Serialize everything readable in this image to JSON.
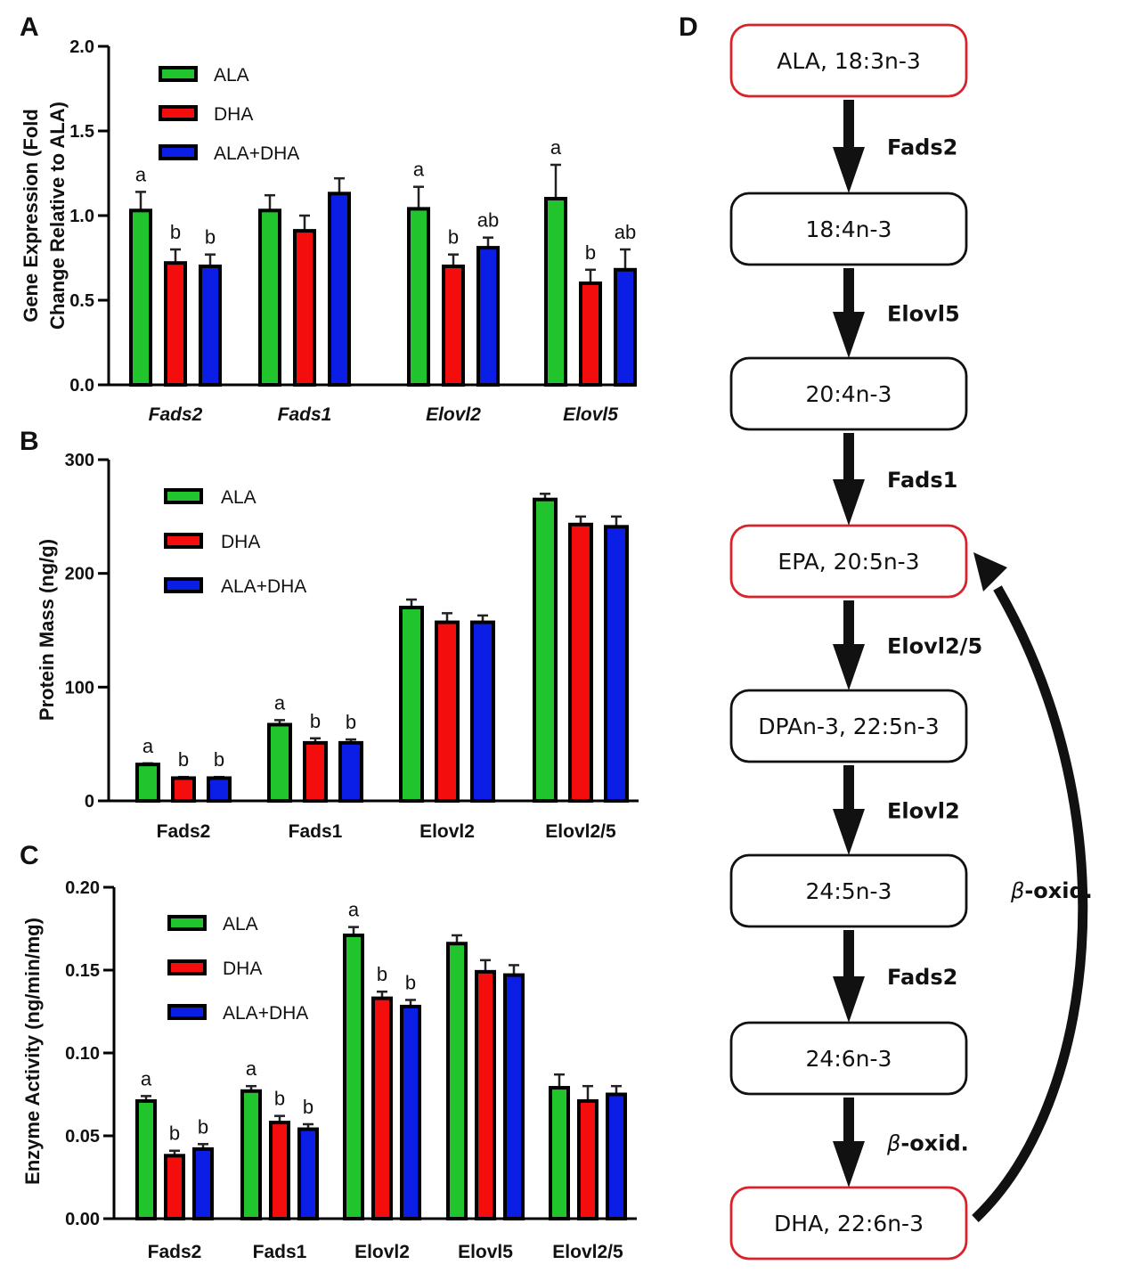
{
  "colors": {
    "ALA": "#22c42e",
    "DHA": "#f40d0d",
    "ALA+DHA": "#0a1ee6",
    "highlight_border": "#d9232a",
    "normal_border": "#111111"
  },
  "chart_data": [
    {
      "panel": "A",
      "type": "bar",
      "title": "",
      "xlabel": "",
      "ylabel": "Gene Expression (Fold Change Relative to ALA)",
      "ylabel_lines": [
        "Gene Expression (Fold",
        "Change Relative to ALA)"
      ],
      "ylim": [
        0,
        2.0
      ],
      "yticks": [
        0.0,
        0.5,
        1.0,
        1.5,
        2.0
      ],
      "ytick_labels": [
        "0.0",
        "0.5",
        "1.0",
        "1.5",
        "2.0"
      ],
      "categories": [
        "Fads2",
        "Fads1",
        "Elovl2",
        "Elovl5"
      ],
      "categories_italic": true,
      "legend": [
        "ALA",
        "DHA",
        "ALA+DHA"
      ],
      "legend_position": "top-left",
      "grid": false,
      "series": [
        {
          "name": "ALA",
          "values": [
            1.03,
            1.03,
            1.04,
            1.1
          ],
          "error_upper": [
            1.14,
            1.12,
            1.17,
            1.3
          ]
        },
        {
          "name": "DHA",
          "values": [
            0.72,
            0.91,
            0.7,
            0.6
          ],
          "error_upper": [
            0.8,
            1.0,
            0.77,
            0.68
          ]
        },
        {
          "name": "ALA+DHA",
          "values": [
            0.7,
            1.13,
            0.81,
            0.68
          ],
          "error_upper": [
            0.77,
            1.22,
            0.87,
            0.8
          ]
        }
      ],
      "annotations": [
        [
          "a",
          "b",
          "b"
        ],
        [
          "",
          "",
          ""
        ],
        [
          "a",
          "b",
          "ab"
        ],
        [
          "a",
          "b",
          "ab"
        ]
      ]
    },
    {
      "panel": "B",
      "type": "bar",
      "title": "",
      "xlabel": "",
      "ylabel": "Protein Mass (ng/g)",
      "ylabel_lines": [
        "Protein Mass (ng/g)"
      ],
      "ylim": [
        0,
        300
      ],
      "yticks": [
        0,
        100,
        200,
        300
      ],
      "ytick_labels": [
        "0",
        "100",
        "200",
        "300"
      ],
      "categories": [
        "Fads2",
        "Fads1",
        "Elovl2",
        "Elovl2/5"
      ],
      "categories_italic": false,
      "legend": [
        "ALA",
        "DHA",
        "ALA+DHA"
      ],
      "legend_position": "top-left",
      "grid": false,
      "series": [
        {
          "name": "ALA",
          "values": [
            32,
            67,
            170,
            265
          ],
          "error_upper": [
            33,
            71,
            177,
            270
          ]
        },
        {
          "name": "DHA",
          "values": [
            20,
            51,
            157,
            243
          ],
          "error_upper": [
            21,
            55,
            165,
            250
          ]
        },
        {
          "name": "ALA+DHA",
          "values": [
            20,
            51,
            157,
            241
          ],
          "error_upper": [
            21,
            54,
            163,
            250
          ]
        }
      ],
      "annotations": [
        [
          "a",
          "b",
          "b"
        ],
        [
          "a",
          "b",
          "b"
        ],
        [
          "",
          "",
          ""
        ],
        [
          "",
          "",
          ""
        ]
      ]
    },
    {
      "panel": "C",
      "type": "bar",
      "title": "",
      "xlabel": "",
      "ylabel": "Enzyme Activity (ng/min/mg)",
      "ylabel_lines": [
        "Enzyme Activity (ng/min/mg)"
      ],
      "ylim": [
        0,
        0.2
      ],
      "yticks": [
        0.0,
        0.05,
        0.1,
        0.15,
        0.2
      ],
      "ytick_labels": [
        "0.00",
        "0.05",
        "0.10",
        "0.15",
        "0.20"
      ],
      "categories": [
        "Fads2",
        "Fads1",
        "Elovl2",
        "Elovl5",
        "Elovl2/5"
      ],
      "categories_italic": false,
      "legend": [
        "ALA",
        "DHA",
        "ALA+DHA"
      ],
      "legend_position": "top-left",
      "grid": false,
      "series": [
        {
          "name": "ALA",
          "values": [
            0.071,
            0.077,
            0.171,
            0.166,
            0.079
          ],
          "error_upper": [
            0.074,
            0.08,
            0.176,
            0.171,
            0.087
          ]
        },
        {
          "name": "DHA",
          "values": [
            0.038,
            0.058,
            0.133,
            0.149,
            0.071
          ],
          "error_upper": [
            0.041,
            0.062,
            0.137,
            0.156,
            0.08
          ]
        },
        {
          "name": "ALA+DHA",
          "values": [
            0.042,
            0.054,
            0.128,
            0.147,
            0.075
          ],
          "error_upper": [
            0.045,
            0.057,
            0.132,
            0.153,
            0.08
          ]
        }
      ],
      "annotations": [
        [
          "a",
          "b",
          "b"
        ],
        [
          "a",
          "b",
          "b"
        ],
        [
          "a",
          "b",
          "b"
        ],
        [
          "",
          "",
          ""
        ],
        [
          "",
          "",
          ""
        ]
      ]
    }
  ],
  "pathway": {
    "panel": "D",
    "nodes": [
      {
        "label": "ALA, 18:3n-3",
        "highlight": true
      },
      {
        "label": "18:4n-3",
        "highlight": false
      },
      {
        "label": "20:4n-3",
        "highlight": false
      },
      {
        "label": "EPA, 20:5n-3",
        "highlight": true
      },
      {
        "label": "DPAn-3, 22:5n-3",
        "highlight": false
      },
      {
        "label": "24:5n-3",
        "highlight": false
      },
      {
        "label": "24:6n-3",
        "highlight": false
      },
      {
        "label": "DHA, 22:6n-3",
        "highlight": true
      }
    ],
    "steps": [
      {
        "beta": false,
        "label": "Fads2"
      },
      {
        "beta": false,
        "label": "Elovl5"
      },
      {
        "beta": false,
        "label": "Fads1"
      },
      {
        "beta": false,
        "label": "Elovl2/5"
      },
      {
        "beta": false,
        "label": "Elovl2"
      },
      {
        "beta": false,
        "label": "Fads2"
      },
      {
        "beta": true,
        "label": "-oxid."
      }
    ],
    "retro_arrow": {
      "from": "DHA, 22:6n-3",
      "to": "EPA, 20:5n-3",
      "beta": true,
      "label": "-oxid."
    },
    "beta_symbol": "β"
  }
}
